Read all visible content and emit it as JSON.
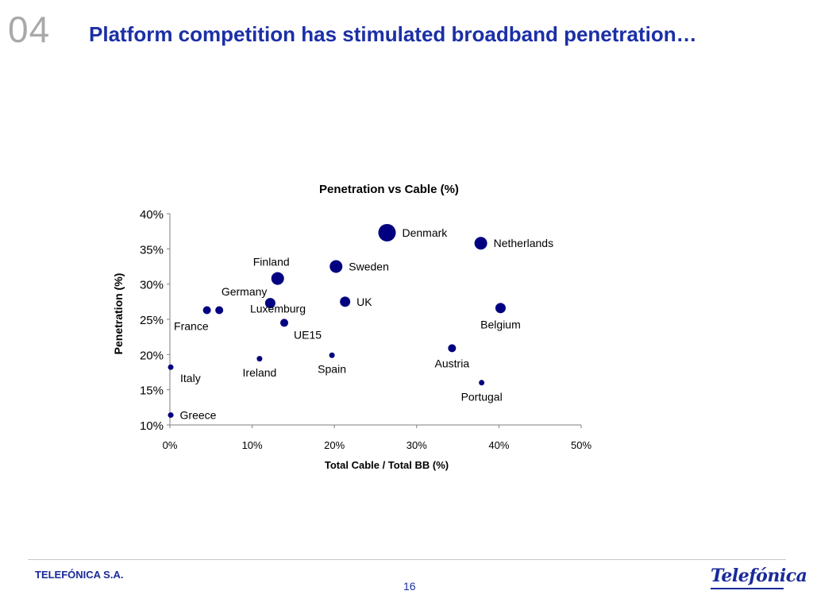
{
  "slide": {
    "number": "04",
    "title": "Platform competition has stimulated broadband penetration…"
  },
  "footer": {
    "company": "TELEFÓNICA S.A.",
    "page": "16",
    "logo_text": "Telefónica"
  },
  "colors": {
    "title": "#1b2fa6",
    "marker": "#000080",
    "number_gray": "#a9a9a9"
  },
  "chart_data": {
    "type": "scatter",
    "title": "Penetration vs Cable  (%)",
    "xlabel": "Total Cable / Total BB (%)",
    "ylabel": "Penetration (%)",
    "xlim": [
      0,
      50
    ],
    "ylim": [
      10,
      40
    ],
    "x_ticks": [
      0,
      10,
      20,
      30,
      40,
      50
    ],
    "y_ticks": [
      10,
      15,
      20,
      25,
      30,
      35,
      40
    ],
    "x_tick_labels": [
      "0%",
      "10%",
      "20%",
      "30%",
      "40%",
      "50%"
    ],
    "y_tick_labels": [
      "10%",
      "15%",
      "20%",
      "25%",
      "30%",
      "35%",
      "40%"
    ],
    "grid": false,
    "points": [
      {
        "label": "Denmark",
        "x": 26.4,
        "y": 37.3,
        "size": "xlarge",
        "label_pos": "right"
      },
      {
        "label": "Netherlands",
        "x": 37.8,
        "y": 35.8,
        "size": "large",
        "label_pos": "right"
      },
      {
        "label": "Sweden",
        "x": 20.2,
        "y": 32.5,
        "size": "large",
        "label_pos": "right"
      },
      {
        "label": "Finland",
        "x": 13.1,
        "y": 30.8,
        "size": "large",
        "label_pos": "above"
      },
      {
        "label": "Germany",
        "x": 12.2,
        "y": 27.3,
        "size": "medium",
        "label_pos": "above-left"
      },
      {
        "label": "Luxemburg",
        "x": 13.9,
        "y": 24.5,
        "size": "small",
        "label_pos": "above"
      },
      {
        "label": "UK",
        "x": 21.3,
        "y": 27.5,
        "size": "medium",
        "label_pos": "right"
      },
      {
        "label": "UE15",
        "x": 13.9,
        "y": 24.5,
        "size": "small",
        "label_pos": "below-right",
        "hide_marker": true
      },
      {
        "label": "Belgium",
        "x": 40.2,
        "y": 26.6,
        "size": "medium",
        "label_pos": "below"
      },
      {
        "label": "France",
        "x": 4.5,
        "y": 26.3,
        "size": "small",
        "label_pos": "below-left"
      },
      {
        "label": "",
        "x": 6.0,
        "y": 26.3,
        "size": "small",
        "label_pos": "none"
      },
      {
        "label": "Austria",
        "x": 34.3,
        "y": 20.9,
        "size": "small",
        "label_pos": "below"
      },
      {
        "label": "Spain",
        "x": 19.7,
        "y": 19.9,
        "size": "xsmall",
        "label_pos": "below"
      },
      {
        "label": "Ireland",
        "x": 10.9,
        "y": 19.4,
        "size": "xsmall",
        "label_pos": "below"
      },
      {
        "label": "Italy",
        "x": 0.1,
        "y": 18.2,
        "size": "xsmall",
        "label_pos": "below-right"
      },
      {
        "label": "Portugal",
        "x": 37.9,
        "y": 16.0,
        "size": "xsmall",
        "label_pos": "below"
      },
      {
        "label": "Greece",
        "x": 0.1,
        "y": 11.4,
        "size": "xsmall",
        "label_pos": "right"
      }
    ]
  }
}
